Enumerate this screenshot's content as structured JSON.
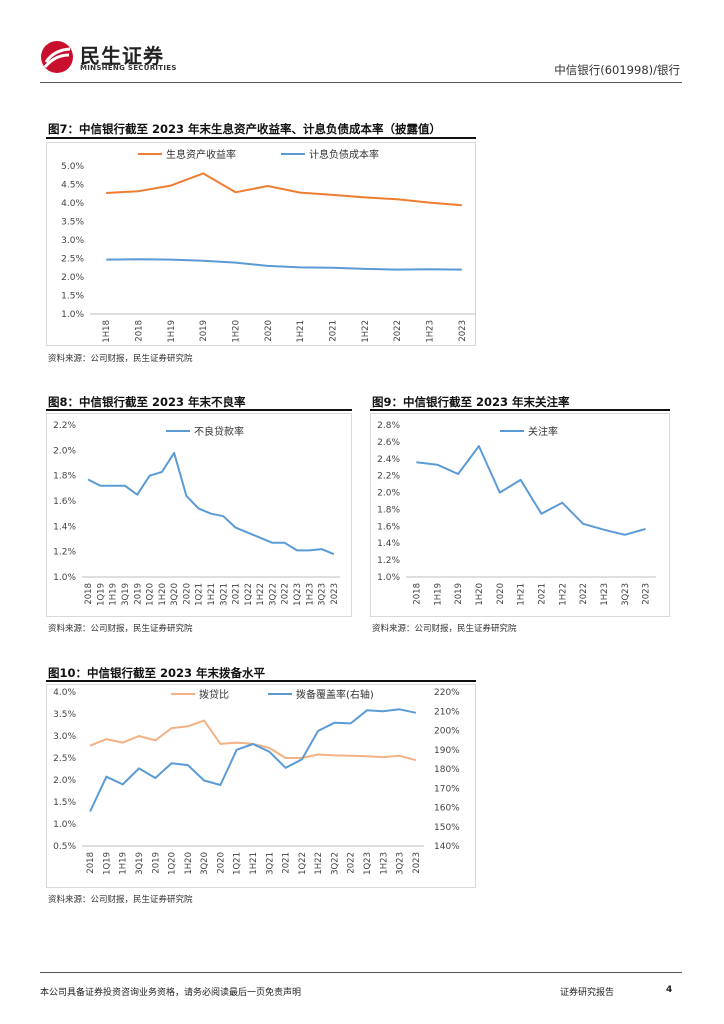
{
  "header": {
    "logo_cn": "民生证券",
    "logo_en": "MINSHENG SECURITIES",
    "doc_title": "中信银行(601998)/银行"
  },
  "colors": {
    "orange": "#ED7D31",
    "blue": "#5B9BD5",
    "orange_light": "#F4B183",
    "logo_red": "#C8102E"
  },
  "figures": {
    "fig7": {
      "title": "图7：中信银行截至 2023 年末生息资产收益率、计息负债成本率（披露值）",
      "source": "资料来源：公司财报，民生证券研究院"
    },
    "fig8": {
      "title": "图8：中信银行截至 2023 年末不良率",
      "source": "资料来源：公司财报，民生证券研究院"
    },
    "fig9": {
      "title": "图9：中信银行截至 2023 年末关注率",
      "source": "资料来源：公司财报，民生证券研究院"
    },
    "fig10": {
      "title": "图10：中信银行截至 2023 年末拨备水平",
      "source": "资料来源：公司财报，民生证券研究院"
    }
  },
  "footer": {
    "disclaimer": "本公司具备证券投资咨询业务资格，请务必阅读最后一页免责声明",
    "report_type": "证券研究报告",
    "page": "4"
  },
  "chart_data": [
    {
      "id": "fig7",
      "type": "line",
      "categories": [
        "1H18",
        "2018",
        "1H19",
        "2019",
        "1H20",
        "2020",
        "1H21",
        "2021",
        "1H22",
        "2022",
        "1H23",
        "2023"
      ],
      "series": [
        {
          "name": "生息资产收益率",
          "color": "#ED7D31",
          "values": [
            4.27,
            4.32,
            4.47,
            4.8,
            4.29,
            4.46,
            4.28,
            4.22,
            4.15,
            4.1,
            4.01,
            3.94
          ]
        },
        {
          "name": "计息负债成本率",
          "color": "#5B9BD5",
          "values": [
            2.47,
            2.48,
            2.47,
            2.44,
            2.39,
            2.3,
            2.26,
            2.25,
            2.22,
            2.2,
            2.21,
            2.2
          ]
        }
      ],
      "ylim": [
        1.0,
        5.0
      ],
      "yticks": [
        "1.0%",
        "1.5%",
        "2.0%",
        "2.5%",
        "3.0%",
        "3.5%",
        "4.0%",
        "4.5%",
        "5.0%"
      ],
      "legend": "top"
    },
    {
      "id": "fig8",
      "type": "line",
      "categories": [
        "2018",
        "1Q19",
        "1H19",
        "3Q19",
        "2019",
        "1Q20",
        "1H20",
        "3Q20",
        "2020",
        "1Q21",
        "1H21",
        "3Q21",
        "2021",
        "1Q22",
        "1H22",
        "3Q22",
        "2022",
        "1Q23",
        "1H23",
        "3Q23",
        "2023"
      ],
      "series": [
        {
          "name": "不良贷款率",
          "color": "#5B9BD5",
          "values": [
            1.77,
            1.72,
            1.72,
            1.72,
            1.65,
            1.8,
            1.83,
            1.98,
            1.64,
            1.54,
            1.5,
            1.48,
            1.39,
            1.35,
            1.31,
            1.27,
            1.27,
            1.21,
            1.21,
            1.22,
            1.18
          ]
        }
      ],
      "ylim": [
        1.0,
        2.2
      ],
      "yticks": [
        "1.0%",
        "1.2%",
        "1.4%",
        "1.6%",
        "1.8%",
        "2.0%",
        "2.2%"
      ],
      "legend": "top"
    },
    {
      "id": "fig9",
      "type": "line",
      "categories": [
        "2018",
        "1H19",
        "2019",
        "1H20",
        "2020",
        "1H21",
        "2021",
        "1H22",
        "2022",
        "1H23",
        "3Q23",
        "2023"
      ],
      "series": [
        {
          "name": "关注率",
          "color": "#5B9BD5",
          "values": [
            2.36,
            2.33,
            2.22,
            2.55,
            2.0,
            2.15,
            1.75,
            1.88,
            1.63,
            1.56,
            1.5,
            1.57
          ]
        }
      ],
      "ylim": [
        1.0,
        2.8
      ],
      "yticks": [
        "1.0%",
        "1.2%",
        "1.4%",
        "1.6%",
        "1.8%",
        "2.0%",
        "2.2%",
        "2.4%",
        "2.6%",
        "2.8%"
      ],
      "legend": "top"
    },
    {
      "id": "fig10",
      "type": "line",
      "categories": [
        "2018",
        "1Q19",
        "1H19",
        "3Q19",
        "2019",
        "1Q20",
        "1H20",
        "3Q20",
        "2020",
        "1Q21",
        "1H21",
        "3Q21",
        "2021",
        "1Q22",
        "1H22",
        "3Q22",
        "2022",
        "1Q23",
        "1H23",
        "3Q23",
        "2023"
      ],
      "series": [
        {
          "name": "拨贷比",
          "color": "#F4B183",
          "axis": "left",
          "values": [
            2.78,
            2.93,
            2.85,
            3.0,
            2.9,
            3.18,
            3.22,
            3.35,
            2.82,
            2.85,
            2.82,
            2.73,
            2.5,
            2.5,
            2.58,
            2.56,
            2.55,
            2.54,
            2.52,
            2.55,
            2.45
          ]
        },
        {
          "name": "拨备覆盖率(右轴)",
          "color": "#5B9BD5",
          "axis": "right",
          "values": [
            157.9,
            176.0,
            172.0,
            180.3,
            175.3,
            183.0,
            182.0,
            174.0,
            171.7,
            190.0,
            193.0,
            189.0,
            180.6,
            185.0,
            199.8,
            204.0,
            203.7,
            210.5,
            210.0,
            211.0,
            209.2
          ]
        }
      ],
      "ylim_left": [
        0.5,
        4.0
      ],
      "ylim_right": [
        140,
        220
      ],
      "yticks_left": [
        "0.5%",
        "1.0%",
        "1.5%",
        "2.0%",
        "2.5%",
        "3.0%",
        "3.5%",
        "4.0%"
      ],
      "yticks_right": [
        "140%",
        "150%",
        "160%",
        "170%",
        "180%",
        "190%",
        "200%",
        "210%",
        "220%"
      ],
      "legend": "top"
    }
  ]
}
